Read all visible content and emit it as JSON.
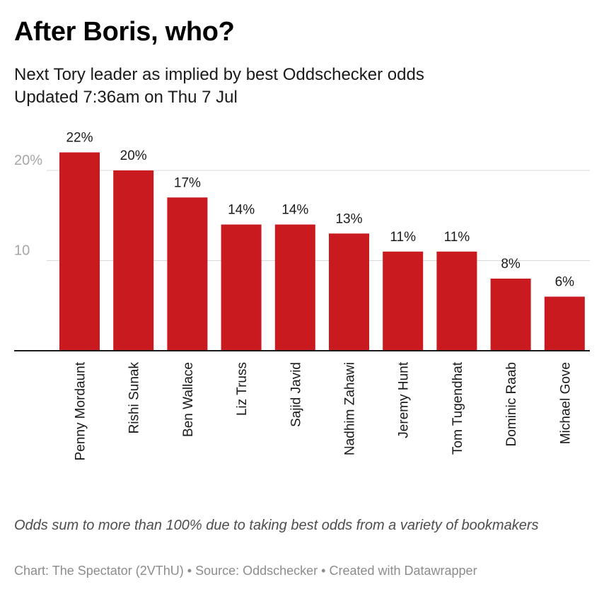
{
  "chart_data": {
    "type": "bar",
    "title": "After Boris, who?",
    "subtitle_lines": [
      "Next Tory leader as implied by best Oddschecker odds",
      "Updated 7:36am on Thu 7 Jul"
    ],
    "categories": [
      "Penny Mordaunt",
      "Rishi Sunak",
      "Ben Wallace",
      "Liz Truss",
      "Sajid Javid",
      "Nadhim Zahawi",
      "Jeremy Hunt",
      "Tom Tugendhat",
      "Dominic Raab",
      "Michael Gove"
    ],
    "values": [
      22,
      20,
      17,
      14,
      14,
      13,
      11,
      11,
      8,
      6
    ],
    "value_labels": [
      "22%",
      "20%",
      "17%",
      "14%",
      "14%",
      "13%",
      "11%",
      "11%",
      "8%",
      "6%"
    ],
    "yticks": [
      10,
      20
    ],
    "ytick_labels": [
      "10",
      "20%"
    ],
    "ylim": [
      0,
      22
    ],
    "grid": true,
    "bar_color": "#c91a1f",
    "note": "Odds sum to more than 100% due to taking best odds from a variety of bookmakers",
    "footer": "Chart: The Spectator (2VThU) • Source: Oddschecker • Created with Datawrapper"
  }
}
